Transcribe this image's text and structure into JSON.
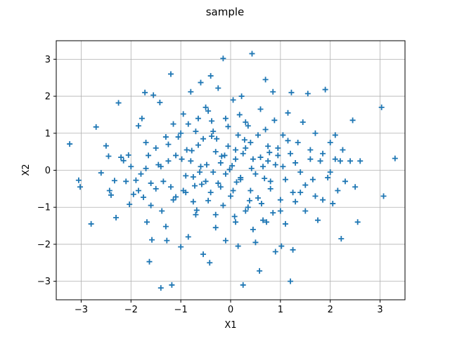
{
  "chart_data": {
    "type": "scatter",
    "title": "sample",
    "xlabel": "X1",
    "ylabel": "X2",
    "xlim": [
      -3.5,
      3.5
    ],
    "ylim": [
      -3.5,
      3.5
    ],
    "xticks": [
      -3,
      -2,
      -1,
      0,
      1,
      2,
      3
    ],
    "yticks": [
      -3,
      -2,
      -1,
      0,
      1,
      2,
      3
    ],
    "grid": true,
    "marker": "+",
    "color": "#1f77b4",
    "series": [
      {
        "points": [
          [
            -3.23,
            0.71
          ],
          [
            -3.05,
            -0.27
          ],
          [
            -3.02,
            -0.45
          ],
          [
            -2.8,
            -1.45
          ],
          [
            -2.7,
            1.17
          ],
          [
            -2.6,
            -0.07
          ],
          [
            -2.5,
            0.66
          ],
          [
            -2.45,
            0.38
          ],
          [
            -2.43,
            -0.55
          ],
          [
            -2.4,
            -0.67
          ],
          [
            -2.33,
            -0.28
          ],
          [
            -2.3,
            -1.28
          ],
          [
            -2.25,
            1.82
          ],
          [
            -2.2,
            0.35
          ],
          [
            -2.15,
            0.26
          ],
          [
            -2.05,
            0.41
          ],
          [
            -2.03,
            -0.92
          ],
          [
            -1.95,
            -0.65
          ],
          [
            -1.9,
            -0.27
          ],
          [
            -1.85,
            1.2
          ],
          [
            -1.8,
            -0.1
          ],
          [
            -1.78,
            1.4
          ],
          [
            -1.75,
            -0.73
          ],
          [
            -1.72,
            2.1
          ],
          [
            -1.7,
            0.05
          ],
          [
            -1.68,
            -1.4
          ],
          [
            -1.65,
            0.4
          ],
          [
            -1.63,
            -2.47
          ],
          [
            -1.6,
            -0.95
          ],
          [
            -1.58,
            -1.88
          ],
          [
            -1.55,
            2.03
          ],
          [
            -1.5,
            -0.5
          ],
          [
            -1.45,
            0.15
          ],
          [
            -1.42,
            1.83
          ],
          [
            -1.4,
            -3.18
          ],
          [
            -1.38,
            -1.1
          ],
          [
            -1.35,
            -0.3
          ],
          [
            -1.3,
            -1.52
          ],
          [
            -1.28,
            -1.9
          ],
          [
            -1.25,
            0.7
          ],
          [
            -1.2,
            2.6
          ],
          [
            -1.18,
            -3.1
          ],
          [
            -1.15,
            1.25
          ],
          [
            -1.1,
            -0.72
          ],
          [
            -1.05,
            0.9
          ],
          [
            -1.0,
            -2.07
          ],
          [
            -0.98,
            0.3
          ],
          [
            -0.95,
            1.52
          ],
          [
            -0.9,
            -0.6
          ],
          [
            -0.85,
            -1.8
          ],
          [
            -0.8,
            2.12
          ],
          [
            -0.78,
            0.53
          ],
          [
            -0.75,
            -0.18
          ],
          [
            -0.7,
            1.05
          ],
          [
            -0.68,
            -1.08
          ],
          [
            -0.65,
            0.68
          ],
          [
            -0.6,
            2.37
          ],
          [
            -0.58,
            -0.38
          ],
          [
            -0.55,
            -2.27
          ],
          [
            -0.5,
            1.7
          ],
          [
            -0.48,
            0.15
          ],
          [
            -0.45,
            -0.82
          ],
          [
            -0.42,
            -2.5
          ],
          [
            -0.4,
            2.55
          ],
          [
            -0.38,
            1.33
          ],
          [
            -0.35,
            -0.05
          ],
          [
            -0.3,
            -1.55
          ],
          [
            -0.28,
            0.85
          ],
          [
            -0.25,
            2.22
          ],
          [
            -0.2,
            -0.45
          ],
          [
            -0.15,
            3.02
          ],
          [
            -0.12,
            0.4
          ],
          [
            -0.1,
            -1.9
          ],
          [
            -0.05,
            1.18
          ],
          [
            0.0,
            -0.7
          ],
          [
            0.03,
            0.12
          ],
          [
            0.05,
            1.9
          ],
          [
            0.08,
            -1.25
          ],
          [
            0.1,
            0.55
          ],
          [
            0.15,
            -2.05
          ],
          [
            0.18,
            1.5
          ],
          [
            0.2,
            -0.25
          ],
          [
            0.22,
            2.0
          ],
          [
            0.25,
            -3.1
          ],
          [
            0.28,
            0.82
          ],
          [
            0.3,
            -1.1
          ],
          [
            0.35,
            1.2
          ],
          [
            0.4,
            -0.55
          ],
          [
            0.43,
            3.15
          ],
          [
            0.45,
            0.3
          ],
          [
            0.5,
            -1.95
          ],
          [
            0.55,
            0.95
          ],
          [
            0.58,
            -2.72
          ],
          [
            0.6,
            1.65
          ],
          [
            0.62,
            -0.9
          ],
          [
            0.65,
            0.1
          ],
          [
            0.7,
            2.45
          ],
          [
            0.72,
            -1.4
          ],
          [
            0.75,
            0.65
          ],
          [
            0.8,
            -0.3
          ],
          [
            0.85,
            2.12
          ],
          [
            0.88,
            1.35
          ],
          [
            0.9,
            -2.2
          ],
          [
            0.95,
            0.4
          ],
          [
            1.0,
            -0.8
          ],
          [
            1.02,
            -2.05
          ],
          [
            1.05,
            0.95
          ],
          [
            1.1,
            -1.45
          ],
          [
            1.15,
            1.55
          ],
          [
            1.2,
            -3.0
          ],
          [
            1.22,
            2.1
          ],
          [
            1.25,
            -2.15
          ],
          [
            1.3,
            0.2
          ],
          [
            1.35,
            0.75
          ],
          [
            1.4,
            -0.6
          ],
          [
            1.45,
            1.3
          ],
          [
            1.5,
            -1.1
          ],
          [
            1.55,
            2.07
          ],
          [
            1.6,
            0.55
          ],
          [
            1.65,
            -0.25
          ],
          [
            1.7,
            1.0
          ],
          [
            1.75,
            -1.35
          ],
          [
            1.8,
            0.25
          ],
          [
            1.85,
            -0.8
          ],
          [
            1.9,
            2.18
          ],
          [
            1.95,
            -0.2
          ],
          [
            2.0,
            0.75
          ],
          [
            2.05,
            -0.9
          ],
          [
            2.1,
            0.95
          ],
          [
            2.15,
            -0.55
          ],
          [
            2.2,
            0.25
          ],
          [
            2.22,
            -1.85
          ],
          [
            2.25,
            0.55
          ],
          [
            2.3,
            -0.3
          ],
          [
            2.4,
            0.25
          ],
          [
            2.45,
            1.35
          ],
          [
            2.5,
            -0.45
          ],
          [
            2.55,
            -1.4
          ],
          [
            2.6,
            0.25
          ],
          [
            3.03,
            1.7
          ],
          [
            3.07,
            -0.7
          ],
          [
            3.3,
            0.32
          ],
          [
            -0.2,
            0.2
          ],
          [
            -0.1,
            -0.1
          ],
          [
            0.1,
            0.3
          ],
          [
            0.2,
            -0.2
          ],
          [
            -0.3,
            0.5
          ],
          [
            0.3,
            0.6
          ],
          [
            -0.5,
            -0.3
          ],
          [
            0.5,
            -0.1
          ],
          [
            -0.6,
            0.1
          ],
          [
            0.6,
            0.35
          ],
          [
            -0.4,
            -0.6
          ],
          [
            0.4,
            0.75
          ],
          [
            -0.8,
            0.25
          ],
          [
            0.8,
            -0.5
          ],
          [
            -0.9,
            -0.15
          ],
          [
            0.9,
            0.15
          ],
          [
            -1.1,
            0.4
          ],
          [
            1.1,
            -0.25
          ],
          [
            -1.2,
            -0.45
          ],
          [
            1.2,
            0.45
          ],
          [
            -0.15,
            -0.95
          ],
          [
            0.15,
            0.95
          ],
          [
            -0.35,
            1.05
          ],
          [
            0.35,
            -1.0
          ],
          [
            -0.7,
            -1.2
          ],
          [
            0.7,
            1.1
          ],
          [
            -1.0,
            1.0
          ],
          [
            1.0,
            -1.1
          ],
          [
            -1.3,
            0.9
          ],
          [
            1.3,
            -0.85
          ],
          [
            -0.05,
            0.65
          ],
          [
            0.05,
            -0.55
          ],
          [
            -0.25,
            -0.35
          ],
          [
            0.25,
            0.45
          ],
          [
            -0.55,
            0.85
          ],
          [
            0.55,
            -0.75
          ],
          [
            -0.75,
            -0.85
          ],
          [
            0.75,
            0.25
          ],
          [
            -1.4,
            0.1
          ],
          [
            1.4,
            -0.05
          ],
          [
            -1.6,
            -0.35
          ],
          [
            1.6,
            0.3
          ],
          [
            -1.5,
            0.6
          ],
          [
            1.5,
            -0.4
          ],
          [
            -0.65,
            1.4
          ],
          [
            0.65,
            -1.35
          ],
          [
            -0.45,
            1.6
          ],
          [
            0.45,
            -1.6
          ],
          [
            -0.85,
            1.25
          ],
          [
            0.85,
            -1.15
          ],
          [
            -1.15,
            -0.8
          ],
          [
            1.15,
            0.8
          ],
          [
            -0.95,
            -0.55
          ],
          [
            0.95,
            0.6
          ],
          [
            -0.1,
            1.4
          ],
          [
            0.1,
            -1.4
          ],
          [
            -0.3,
            -1.2
          ],
          [
            0.3,
            1.3
          ],
          [
            -2.0,
            0.1
          ],
          [
            2.0,
            -0.05
          ],
          [
            -1.85,
            -0.55
          ],
          [
            1.85,
            0.45
          ],
          [
            -1.7,
            0.75
          ],
          [
            1.7,
            -0.7
          ],
          [
            -2.1,
            -0.3
          ],
          [
            2.1,
            0.3
          ],
          [
            -0.02,
            0.02
          ],
          [
            0.12,
            -0.32
          ],
          [
            -0.18,
            0.38
          ],
          [
            0.42,
            0.05
          ],
          [
            -0.62,
            -0.05
          ],
          [
            0.68,
            -0.22
          ],
          [
            -0.88,
            0.55
          ],
          [
            1.05,
            0.1
          ],
          [
            -1.25,
            0.25
          ],
          [
            1.25,
            -0.6
          ],
          [
            -0.38,
            0.92
          ],
          [
            0.38,
            -0.82
          ],
          [
            -0.72,
            -0.42
          ],
          [
            0.78,
            0.48
          ]
        ]
      }
    ]
  }
}
